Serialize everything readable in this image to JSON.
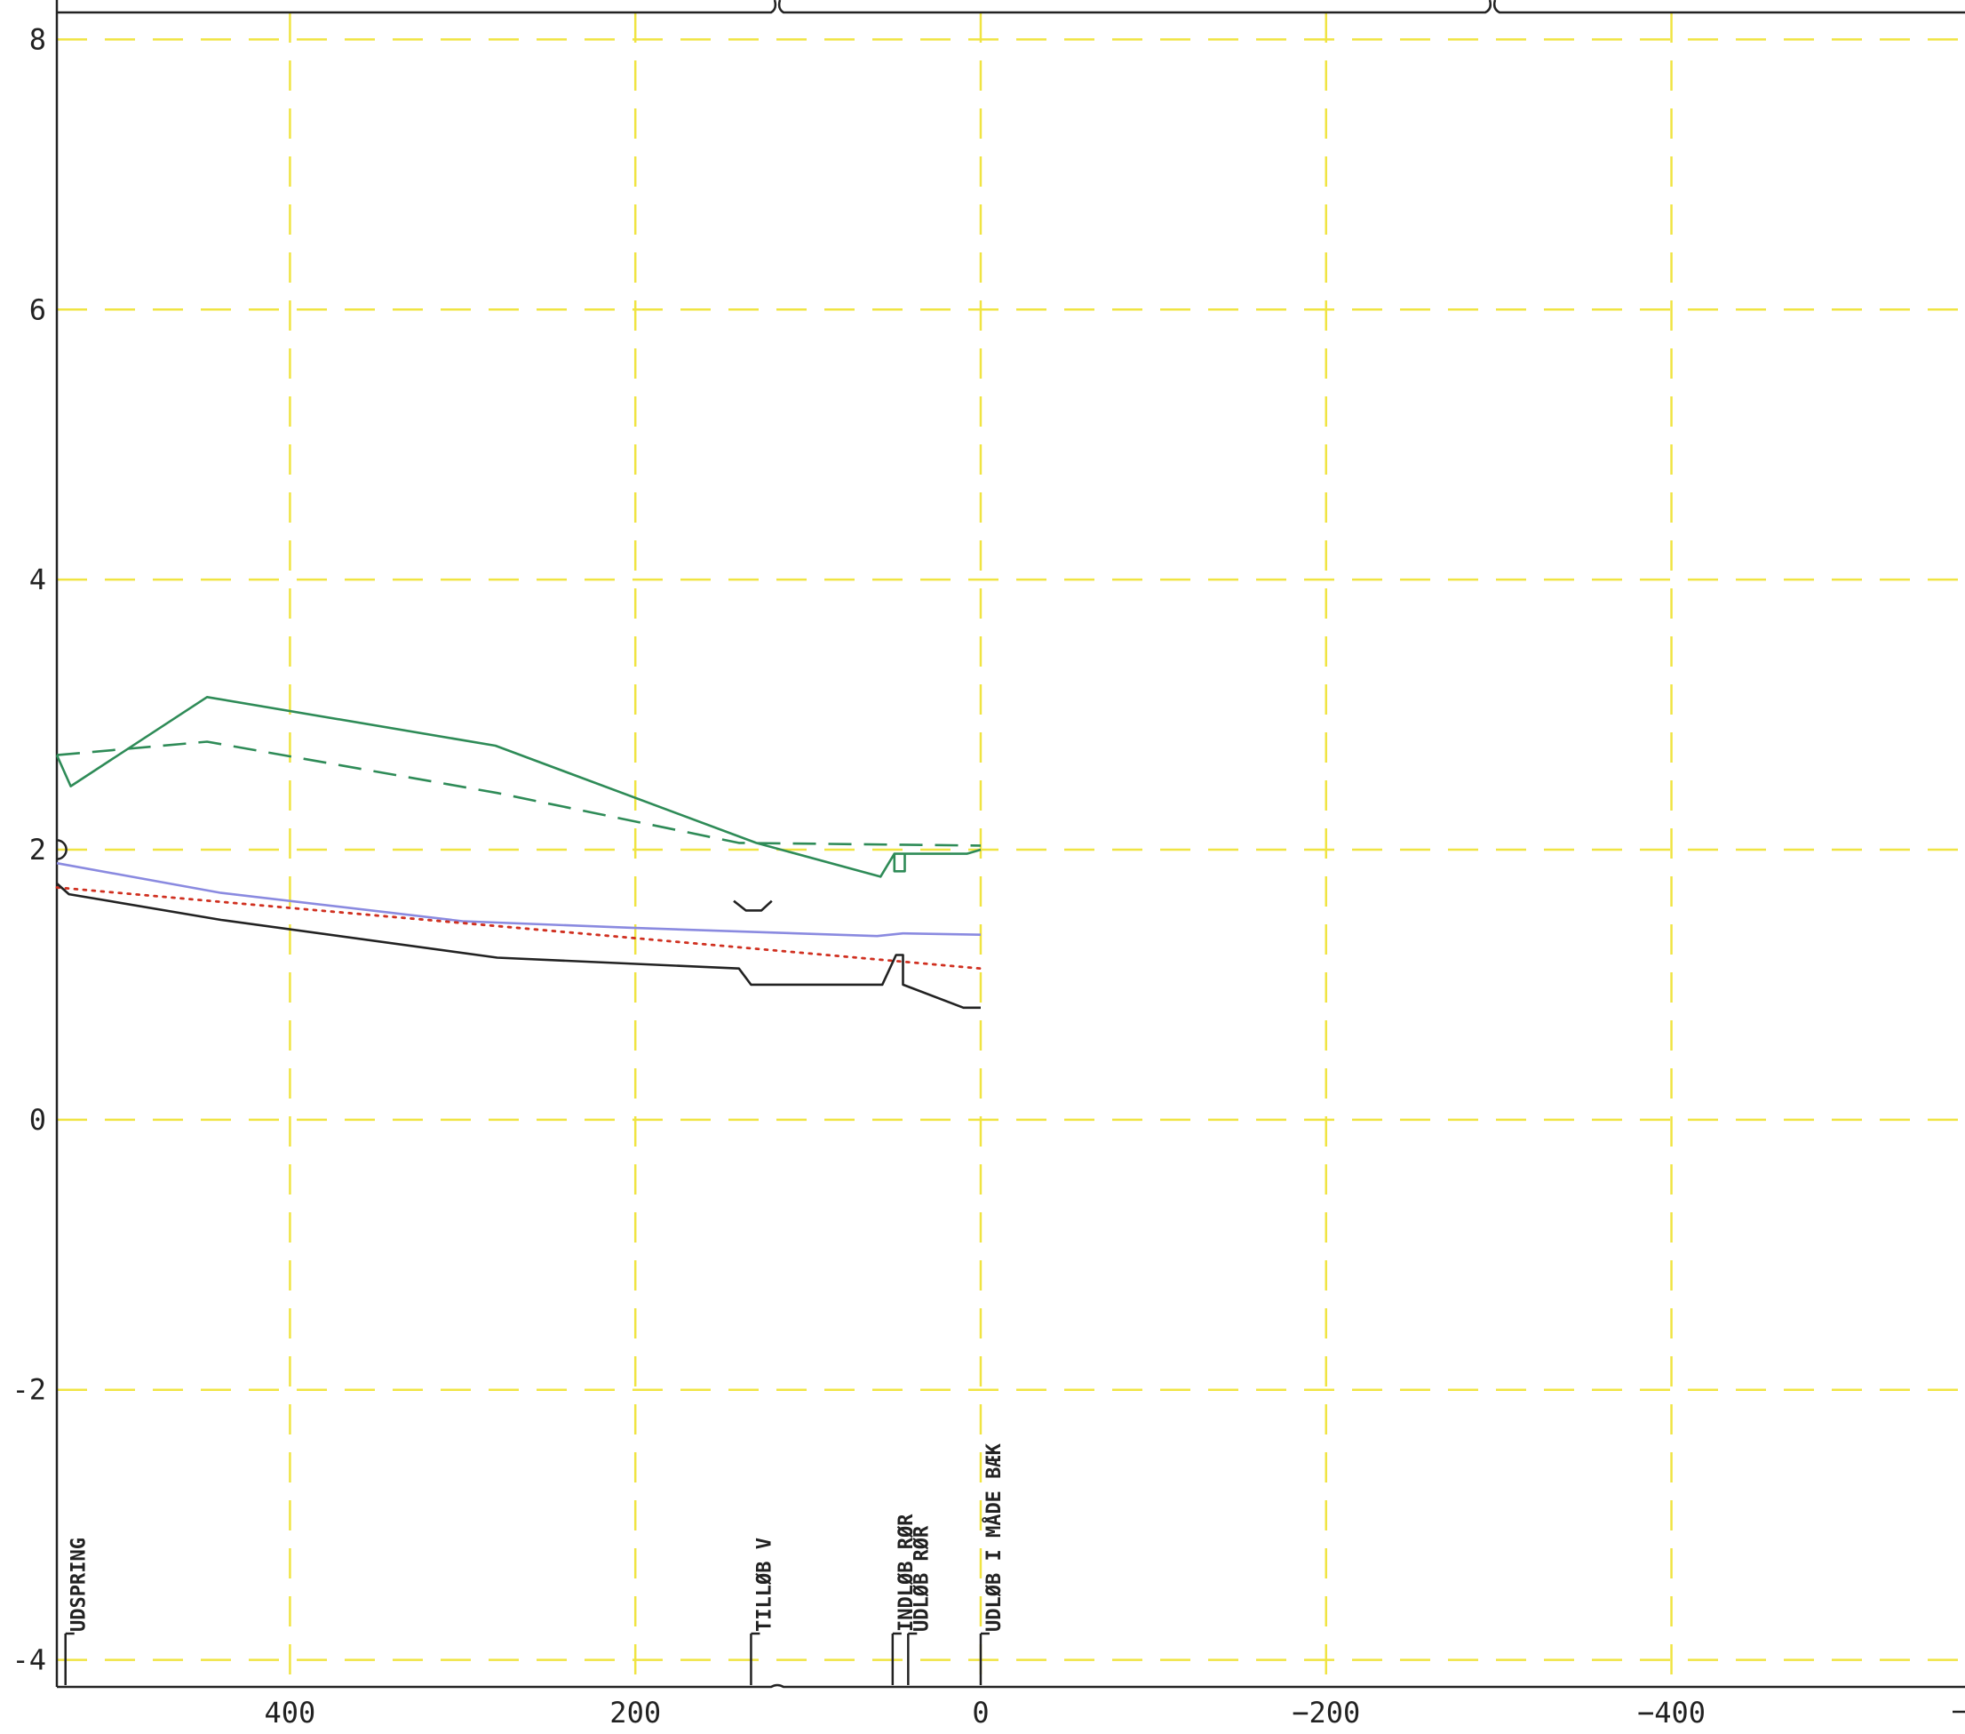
{
  "chart_data": {
    "type": "line",
    "title": "",
    "xlabel": "",
    "ylabel": "",
    "xlim": [
      535,
      -570
    ],
    "ylim": [
      -4.2,
      8.2
    ],
    "x_reversed": true,
    "grid": true,
    "grid_style": "dashed",
    "grid_color": "#f0e442",
    "x_ticks": [
      {
        "value": 400,
        "label": "400"
      },
      {
        "value": 200,
        "label": "200"
      },
      {
        "value": 0,
        "label": "0"
      },
      {
        "value": -200,
        "label": "−200"
      },
      {
        "value": -400,
        "label": "−400"
      }
    ],
    "y_ticks": [
      {
        "value": 8,
        "label": "8"
      },
      {
        "value": 6,
        "label": "6"
      },
      {
        "value": 4,
        "label": "4"
      },
      {
        "value": 2,
        "label": "2"
      },
      {
        "value": 0,
        "label": "0"
      },
      {
        "value": -2,
        "label": "-2"
      },
      {
        "value": -4,
        "label": "-4"
      }
    ],
    "series": [
      {
        "id": "green-solid",
        "color": "#2e8b57",
        "style": "solid",
        "points": [
          [
            535,
            2.7
          ],
          [
            527,
            2.47
          ],
          [
            448,
            3.13
          ],
          [
            281,
            2.77
          ],
          [
            130,
            2.05
          ],
          [
            58,
            1.8
          ],
          [
            50,
            1.97
          ],
          [
            44,
            1.97
          ],
          [
            44,
            1.84
          ],
          [
            50,
            1.84
          ],
          [
            50,
            1.97
          ],
          [
            8,
            1.97
          ],
          [
            0,
            2.0
          ]
        ]
      },
      {
        "id": "green-dashed",
        "color": "#2e8b57",
        "style": "dashed",
        "points": [
          [
            535,
            2.7
          ],
          [
            448,
            2.8
          ],
          [
            280,
            2.42
          ],
          [
            140,
            2.05
          ],
          [
            0,
            2.03
          ]
        ]
      },
      {
        "id": "blue-line",
        "color": "#8a8ae0",
        "style": "solid",
        "points": [
          [
            535,
            1.9
          ],
          [
            440,
            1.68
          ],
          [
            300,
            1.47
          ],
          [
            200,
            1.42
          ],
          [
            60,
            1.36
          ],
          [
            45,
            1.38
          ],
          [
            0,
            1.37
          ]
        ]
      },
      {
        "id": "red-dotted",
        "color": "#d03020",
        "style": "dotted",
        "points": [
          [
            535,
            1.72
          ],
          [
            0,
            1.12
          ]
        ]
      },
      {
        "id": "black-line",
        "color": "#222222",
        "style": "solid",
        "points": [
          [
            535,
            1.75
          ],
          [
            528,
            1.67
          ],
          [
            440,
            1.48
          ],
          [
            280,
            1.2
          ],
          [
            140,
            1.12
          ],
          [
            133,
            1.0
          ],
          [
            57,
            1.0
          ],
          [
            49,
            1.22
          ],
          [
            45,
            1.22
          ],
          [
            45,
            1.0
          ],
          [
            10,
            0.83
          ],
          [
            0,
            0.83
          ]
        ]
      },
      {
        "id": "black-small-segment",
        "color": "#222222",
        "style": "solid",
        "points": [
          [
            143,
            1.62
          ],
          [
            136,
            1.55
          ],
          [
            127,
            1.55
          ],
          [
            121,
            1.62
          ]
        ]
      }
    ],
    "station_labels": [
      {
        "x": 530,
        "label": "UDSPRING"
      },
      {
        "x": 133,
        "label": "TILLØB V"
      },
      {
        "x": 51,
        "label": "INDLØB RØR"
      },
      {
        "x": 42,
        "label": "UDLØB RØR"
      },
      {
        "x": 0,
        "label": "UDLØB I MÅDE BÆK"
      }
    ]
  }
}
